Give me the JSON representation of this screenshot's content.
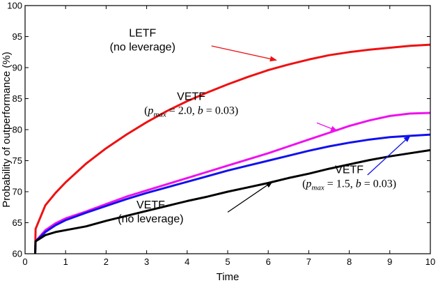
{
  "chart_data": {
    "type": "line",
    "title": "",
    "xlabel": "Time",
    "ylabel": "Probability of outperformance (%)",
    "xlim": [
      0,
      10
    ],
    "ylim": [
      60,
      100
    ],
    "xticks": [
      "0",
      "1",
      "2",
      "3",
      "4",
      "5",
      "6",
      "7",
      "8",
      "9",
      "10"
    ],
    "yticks": [
      "60",
      "65",
      "70",
      "75",
      "80",
      "85",
      "90",
      "95",
      "100"
    ],
    "grid": false,
    "series": [
      {
        "name": "LETF (no leverage)",
        "color": "#ee1111",
        "x": [
          0.25,
          0.26,
          0.5,
          0.75,
          1.0,
          1.5,
          2.0,
          2.5,
          3.0,
          3.5,
          4.0,
          4.5,
          5.0,
          5.5,
          6.0,
          6.5,
          7.0,
          7.5,
          8.0,
          8.5,
          9.0,
          9.5,
          10.0
        ],
        "y": [
          60.0,
          64.0,
          67.8,
          69.8,
          71.5,
          74.5,
          77.0,
          79.2,
          81.2,
          83.0,
          84.6,
          86.0,
          87.3,
          88.5,
          89.6,
          90.5,
          91.3,
          92.0,
          92.5,
          92.9,
          93.2,
          93.5,
          93.7
        ]
      },
      {
        "name": "VETF (p_max = 2.0, b = 0.03)",
        "color": "#ee11ee",
        "x": [
          0.25,
          0.26,
          0.5,
          0.75,
          1.0,
          1.5,
          2.0,
          2.5,
          3.0,
          3.5,
          4.0,
          4.5,
          5.0,
          5.5,
          6.0,
          6.5,
          7.0,
          7.5,
          8.0,
          8.5,
          9.0,
          9.5,
          10.0
        ],
        "y": [
          60.0,
          62.0,
          63.8,
          64.9,
          65.7,
          66.8,
          68.0,
          69.2,
          70.2,
          71.2,
          72.2,
          73.2,
          74.2,
          75.2,
          76.2,
          77.3,
          78.4,
          79.5,
          80.6,
          81.5,
          82.2,
          82.6,
          82.7
        ]
      },
      {
        "name": "VETF (p_max = 1.5, b = 0.03)",
        "color": "#1111ee",
        "x": [
          0.25,
          0.26,
          0.5,
          0.75,
          1.0,
          1.5,
          2.0,
          2.5,
          3.0,
          3.5,
          4.0,
          4.5,
          5.0,
          5.5,
          6.0,
          6.5,
          7.0,
          7.5,
          8.0,
          8.5,
          9.0,
          9.5,
          10.0
        ],
        "y": [
          60.0,
          62.0,
          63.5,
          64.6,
          65.4,
          66.6,
          67.7,
          68.8,
          69.8,
          70.7,
          71.6,
          72.5,
          73.4,
          74.2,
          75.0,
          75.8,
          76.6,
          77.3,
          77.9,
          78.4,
          78.8,
          79.0,
          79.2
        ]
      },
      {
        "name": "VETF (no leverage)",
        "color": "#000000",
        "x": [
          0.25,
          0.26,
          0.5,
          0.75,
          1.0,
          1.5,
          2.0,
          2.5,
          3.0,
          3.5,
          4.0,
          4.5,
          5.0,
          5.5,
          6.0,
          6.5,
          7.0,
          7.5,
          8.0,
          8.5,
          9.0,
          9.5,
          10.0
        ],
        "y": [
          60.0,
          62.0,
          63.0,
          63.5,
          63.8,
          64.4,
          65.3,
          66.1,
          66.9,
          67.7,
          68.5,
          69.2,
          70.0,
          70.7,
          71.4,
          72.2,
          72.9,
          73.7,
          74.4,
          75.1,
          75.7,
          76.2,
          76.7
        ]
      }
    ],
    "annotations": [
      {
        "lines": [
          "LETF",
          "(no leverage)"
        ],
        "math": false,
        "color": "#ee1111",
        "text_anchor": [
          2.9,
          95.0
        ],
        "arrow_from": [
          4.6,
          93.5
        ],
        "arrow_to": [
          6.2,
          91.2
        ]
      },
      {
        "lines": [
          "VETF",
          "(p_max = 2.0, b = 0.03)"
        ],
        "math": true,
        "color": "#ee11ee",
        "text_anchor": [
          4.1,
          84.8
        ],
        "arrow_from": [
          7.2,
          81.1
        ],
        "arrow_to": [
          7.7,
          79.8
        ]
      },
      {
        "lines": [
          "VETF",
          "(p_max = 1.5, b = 0.03)"
        ],
        "math": true,
        "color": "#1111ee",
        "text_anchor": [
          8.0,
          73.0
        ],
        "arrow_from": [
          8.45,
          72.7
        ],
        "arrow_to": [
          9.5,
          79.0
        ]
      },
      {
        "lines": [
          "VETF",
          "(no leverage)"
        ],
        "math": false,
        "color": "#000000",
        "text_anchor": [
          3.1,
          67.3
        ],
        "arrow_from": [
          5.0,
          66.7
        ],
        "arrow_to": [
          6.1,
          71.6
        ]
      }
    ]
  }
}
